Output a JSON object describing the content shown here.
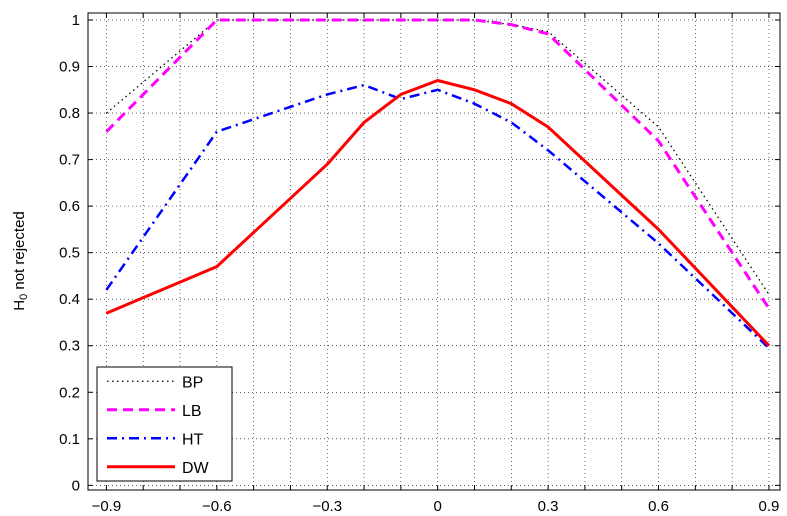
{
  "chart_data": {
    "type": "line",
    "title": "",
    "xlabel": "",
    "ylabel": {
      "main": "H",
      "sub": "0",
      "rest": " not rejected"
    },
    "xlim": [
      -0.95,
      0.93
    ],
    "ylim": [
      -0.01,
      1.015
    ],
    "xticks": [
      -0.9,
      -0.6,
      -0.3,
      0,
      0.3,
      0.6,
      0.9
    ],
    "xtick_labels": [
      "−0.9",
      "−0.6",
      "−0.3",
      "0",
      "0.3",
      "0.6",
      "0.9"
    ],
    "yticks": [
      0,
      0.1,
      0.2,
      0.3,
      0.4,
      0.5,
      0.6,
      0.7,
      0.8,
      0.9,
      1
    ],
    "ytick_labels": [
      "0",
      "0.1",
      "0.2",
      "0.3",
      "0.4",
      "0.5",
      "0.6",
      "0.7",
      "0.8",
      "0.9",
      "1"
    ],
    "grid": true,
    "legend_position": "bottom-left",
    "series": [
      {
        "name": "BP",
        "color": "#000000",
        "style": "dotted",
        "x": [
          -0.9,
          -0.6,
          -0.3,
          -0.2,
          -0.1,
          0,
          0.1,
          0.2,
          0.3,
          0.6,
          0.9
        ],
        "y": [
          0.8,
          1.0,
          1.0,
          1.0,
          1.0,
          1.0,
          1.0,
          0.99,
          0.975,
          0.77,
          0.41
        ]
      },
      {
        "name": "LB",
        "color": "#ff00ff",
        "style": "dashed",
        "x": [
          -0.9,
          -0.6,
          -0.3,
          -0.2,
          -0.1,
          0,
          0.1,
          0.2,
          0.3,
          0.6,
          0.9
        ],
        "y": [
          0.76,
          1.0,
          1.0,
          1.0,
          1.0,
          1.0,
          1.0,
          0.99,
          0.97,
          0.74,
          0.38
        ]
      },
      {
        "name": "HT",
        "color": "#0000ff",
        "style": "dashdot",
        "x": [
          -0.9,
          -0.6,
          -0.3,
          -0.2,
          -0.1,
          0,
          0.1,
          0.2,
          0.3,
          0.6,
          0.9
        ],
        "y": [
          0.42,
          0.76,
          0.84,
          0.86,
          0.83,
          0.85,
          0.82,
          0.78,
          0.72,
          0.52,
          0.295
        ]
      },
      {
        "name": "DW",
        "color": "#ff0000",
        "style": "solid",
        "x": [
          -0.9,
          -0.6,
          -0.3,
          -0.2,
          -0.1,
          0,
          0.1,
          0.2,
          0.3,
          0.6,
          0.9
        ],
        "y": [
          0.37,
          0.47,
          0.69,
          0.78,
          0.84,
          0.87,
          0.85,
          0.82,
          0.77,
          0.55,
          0.3
        ]
      }
    ]
  }
}
